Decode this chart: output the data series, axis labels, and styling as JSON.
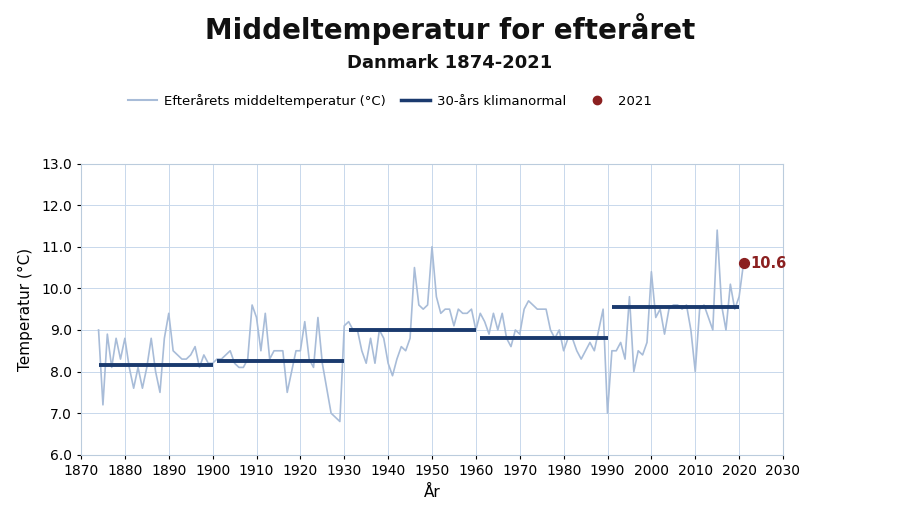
{
  "title": "Middeltemperatur for efteråret",
  "subtitle": "Danmark 1874-2021",
  "xlabel": "År",
  "ylabel": "Temperatur (°C)",
  "xlim": [
    1870,
    2030
  ],
  "ylim": [
    6.0,
    13.0
  ],
  "yticks": [
    6.0,
    7.0,
    8.0,
    9.0,
    10.0,
    11.0,
    12.0,
    13.0
  ],
  "xticks": [
    1870,
    1880,
    1890,
    1900,
    1910,
    1920,
    1930,
    1940,
    1950,
    1960,
    1970,
    1980,
    1990,
    2000,
    2010,
    2020,
    2030
  ],
  "years": [
    1874,
    1875,
    1876,
    1877,
    1878,
    1879,
    1880,
    1881,
    1882,
    1883,
    1884,
    1885,
    1886,
    1887,
    1888,
    1889,
    1890,
    1891,
    1892,
    1893,
    1894,
    1895,
    1896,
    1897,
    1898,
    1899,
    1900,
    1901,
    1902,
    1903,
    1904,
    1905,
    1906,
    1907,
    1908,
    1909,
    1910,
    1911,
    1912,
    1913,
    1914,
    1915,
    1916,
    1917,
    1918,
    1919,
    1920,
    1921,
    1922,
    1923,
    1924,
    1925,
    1926,
    1927,
    1928,
    1929,
    1930,
    1931,
    1932,
    1933,
    1934,
    1935,
    1936,
    1937,
    1938,
    1939,
    1940,
    1941,
    1942,
    1943,
    1944,
    1945,
    1946,
    1947,
    1948,
    1949,
    1950,
    1951,
    1952,
    1953,
    1954,
    1955,
    1956,
    1957,
    1958,
    1959,
    1960,
    1961,
    1962,
    1963,
    1964,
    1965,
    1966,
    1967,
    1968,
    1969,
    1970,
    1971,
    1972,
    1973,
    1974,
    1975,
    1976,
    1977,
    1978,
    1979,
    1980,
    1981,
    1982,
    1983,
    1984,
    1985,
    1986,
    1987,
    1988,
    1989,
    1990,
    1991,
    1992,
    1993,
    1994,
    1995,
    1996,
    1997,
    1998,
    1999,
    2000,
    2001,
    2002,
    2003,
    2004,
    2005,
    2006,
    2007,
    2008,
    2009,
    2010,
    2011,
    2012,
    2013,
    2014,
    2015,
    2016,
    2017,
    2018,
    2019,
    2020,
    2021
  ],
  "temps": [
    9.0,
    7.2,
    8.9,
    8.1,
    8.8,
    8.3,
    8.8,
    8.1,
    7.6,
    8.1,
    7.6,
    8.1,
    8.8,
    8.0,
    7.5,
    8.8,
    9.4,
    8.5,
    8.4,
    8.3,
    8.3,
    8.4,
    8.6,
    8.1,
    8.4,
    8.2,
    8.2,
    8.3,
    8.3,
    8.4,
    8.5,
    8.2,
    8.1,
    8.1,
    8.3,
    9.6,
    9.3,
    8.5,
    9.4,
    8.3,
    8.5,
    8.5,
    8.5,
    7.5,
    8.0,
    8.5,
    8.5,
    9.2,
    8.3,
    8.1,
    9.3,
    8.2,
    7.6,
    7.0,
    6.9,
    6.8,
    9.1,
    9.2,
    9.0,
    9.0,
    8.5,
    8.2,
    8.8,
    8.2,
    9.0,
    8.8,
    8.2,
    7.9,
    8.3,
    8.6,
    8.5,
    8.8,
    10.5,
    9.6,
    9.5,
    9.6,
    11.0,
    9.8,
    9.4,
    9.5,
    9.5,
    9.1,
    9.5,
    9.4,
    9.4,
    9.5,
    9.0,
    9.4,
    9.2,
    8.9,
    9.4,
    9.0,
    9.4,
    8.8,
    8.6,
    9.0,
    8.9,
    9.5,
    9.7,
    9.6,
    9.5,
    9.5,
    9.5,
    9.0,
    8.8,
    9.0,
    8.5,
    8.8,
    8.8,
    8.5,
    8.3,
    8.5,
    8.7,
    8.5,
    9.0,
    9.5,
    7.0,
    8.5,
    8.5,
    8.7,
    8.3,
    9.8,
    8.0,
    8.5,
    8.4,
    8.7,
    10.4,
    9.3,
    9.5,
    8.9,
    9.5,
    9.6,
    9.6,
    9.5,
    9.6,
    9.0,
    8.0,
    9.5,
    9.6,
    9.3,
    9.0,
    11.4,
    9.6,
    9.0,
    10.1,
    9.5,
    9.8,
    10.6
  ],
  "climate_normals": [
    {
      "x_start": 1874,
      "x_end": 1900,
      "y": 8.15
    },
    {
      "x_start": 1901,
      "x_end": 1930,
      "y": 8.25
    },
    {
      "x_start": 1931,
      "x_end": 1960,
      "y": 9.0
    },
    {
      "x_start": 1961,
      "x_end": 1990,
      "y": 8.8
    },
    {
      "x_start": 1991,
      "x_end": 2020,
      "y": 9.55
    }
  ],
  "highlight_year": 2021,
  "highlight_value": 10.6,
  "line_color": "#a8bcd8",
  "normal_color": "#1a3a6e",
  "highlight_color": "#8b2020",
  "background_color": "#ffffff",
  "plot_bg_color": "#ffffff",
  "grid_color": "#c8d8ec",
  "title_fontsize": 20,
  "subtitle_fontsize": 13,
  "axis_label_fontsize": 11,
  "tick_fontsize": 10,
  "legend_label_line": "Efterårets middeltemperatur (°C)",
  "legend_label_normal": "30-års klimanormal",
  "legend_label_highlight": "2021",
  "dmi_logo_color": "#1a3a8a"
}
